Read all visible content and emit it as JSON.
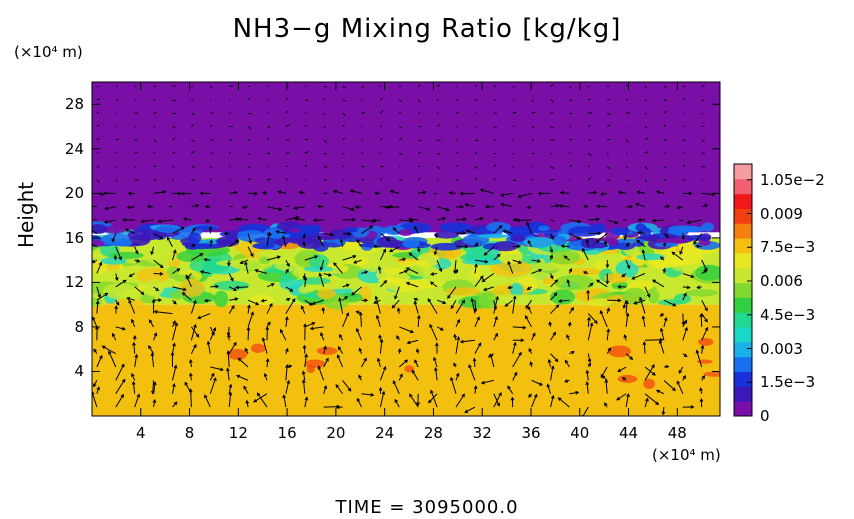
{
  "chart_data": {
    "type": "heatmap",
    "title": "NH3−g Mixing Ratio [kg/kg]",
    "ylabel": "Height",
    "xunit": "(×10⁴ m)",
    "yunit": "(×10⁴ m)",
    "footer": "TIME = 3095000.0",
    "xlim": [
      0,
      51.5
    ],
    "ylim": [
      0,
      30
    ],
    "x_ticks": [
      4,
      8,
      12,
      16,
      20,
      24,
      28,
      32,
      36,
      40,
      44,
      48
    ],
    "y_ticks": [
      4,
      8,
      12,
      16,
      20,
      24,
      28
    ],
    "colorbar": {
      "range": [
        0,
        0.0112
      ],
      "tick_values": [
        0,
        0.0015,
        0.003,
        0.0045,
        0.006,
        0.0075,
        0.009,
        0.0105
      ],
      "tick_labels": [
        "0",
        "1.5e−3",
        "0.003",
        "4.5e−3",
        "0.006",
        "7.5e−3",
        "0.009",
        "1.05e−2"
      ],
      "colors": [
        "#7a0fa8",
        "#3b18b8",
        "#1a30d8",
        "#1870f0",
        "#1ab0e8",
        "#1ad8c8",
        "#20d890",
        "#30d040",
        "#7ed830",
        "#c8e830",
        "#e8e820",
        "#f4c010",
        "#f48010",
        "#f04010",
        "#f01818",
        "#f06070",
        "#f49ca0"
      ]
    },
    "regions": [
      {
        "name": "upper",
        "y_range": [
          16.5,
          30
        ],
        "value": 0.0
      },
      {
        "name": "transition",
        "y_range": [
          15.0,
          17.0
        ],
        "value": 0.0015
      },
      {
        "name": "middle",
        "y_range": [
          10.0,
          16.0
        ],
        "value": 0.0062
      },
      {
        "name": "lower",
        "y_range": [
          0,
          10.0
        ],
        "value": 0.0079
      }
    ]
  },
  "colors": {
    "background": "#ffffff",
    "axis": "#000000"
  }
}
